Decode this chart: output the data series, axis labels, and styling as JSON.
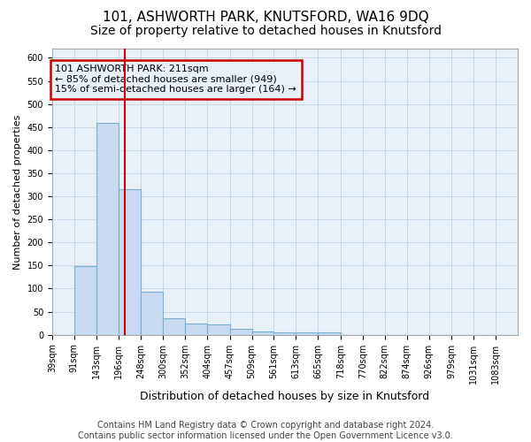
{
  "title1": "101, ASHWORTH PARK, KNUTSFORD, WA16 9DQ",
  "title2": "Size of property relative to detached houses in Knutsford",
  "xlabel": "Distribution of detached houses by size in Knutsford",
  "ylabel": "Number of detached properties",
  "footnote": "Contains HM Land Registry data © Crown copyright and database right 2024.\nContains public sector information licensed under the Open Government Licence v3.0.",
  "bin_labels": [
    "39sqm",
    "91sqm",
    "143sqm",
    "196sqm",
    "248sqm",
    "300sqm",
    "352sqm",
    "404sqm",
    "457sqm",
    "509sqm",
    "561sqm",
    "613sqm",
    "665sqm",
    "718sqm",
    "770sqm",
    "822sqm",
    "874sqm",
    "926sqm",
    "979sqm",
    "1031sqm",
    "1083sqm"
  ],
  "bin_edges": [
    39,
    91,
    143,
    196,
    248,
    300,
    352,
    404,
    457,
    509,
    561,
    613,
    665,
    718,
    770,
    822,
    874,
    926,
    979,
    1031,
    1083,
    1135
  ],
  "bar_heights": [
    0,
    148,
    460,
    315,
    93,
    36,
    24,
    22,
    12,
    7,
    5,
    5,
    5,
    0,
    0,
    0,
    0,
    0,
    0,
    0,
    0
  ],
  "bar_color": "#c8daef",
  "bar_edge_color": "#7aafd4",
  "property_size": 211,
  "red_line_color": "#cc0000",
  "annotation_line1": "101 ASHWORTH PARK: 211sqm",
  "annotation_line2": "← 85% of detached houses are smaller (949)",
  "annotation_line3": "15% of semi-detached houses are larger (164) →",
  "ylim": [
    0,
    620
  ],
  "yticks": [
    0,
    50,
    100,
    150,
    200,
    250,
    300,
    350,
    400,
    450,
    500,
    550,
    600
  ],
  "grid_color": "#c8d8ea",
  "bg_color": "#e8f0f8",
  "title1_fontsize": 11,
  "title2_fontsize": 10,
  "xlabel_fontsize": 9,
  "ylabel_fontsize": 8,
  "footnote_fontsize": 7,
  "tick_fontsize": 7,
  "annot_fontsize": 8
}
